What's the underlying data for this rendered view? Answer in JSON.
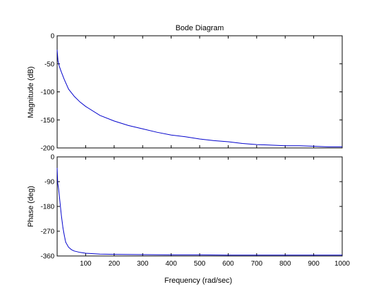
{
  "chart_data": {
    "type": "line",
    "title": "Bode Diagram",
    "xlabel": "Frequency  (rad/sec)",
    "line_color": "#0000cc",
    "grid": false,
    "x_ticks": [
      "100",
      "200",
      "300",
      "400",
      "500",
      "600",
      "700",
      "800",
      "900",
      "1000"
    ],
    "xlim": [
      0,
      1000
    ],
    "panels": [
      {
        "id": "magnitude",
        "ylabel": "Magnitude (dB)",
        "ylim": [
          -200,
          0
        ],
        "y_ticks": [
          "0",
          "-50",
          "-100",
          "-150",
          "-200"
        ],
        "series": [
          {
            "x": [
              0,
              3,
              8,
              15,
              25,
              40,
              60,
              80,
              100,
              150,
              200,
              250,
              300,
              350,
              400,
              450,
              500,
              550,
              600,
              650,
              700,
              750,
              800,
              850,
              900,
              950,
              1000
            ],
            "y": [
              -25,
              -45,
              -55,
              -65,
              -78,
              -95,
              -108,
              -118,
              -126,
              -142,
              -152,
              -160,
              -166,
              -172,
              -177,
              -180,
              -184,
              -187,
              -189,
              -192,
              -194,
              -195,
              -196,
              -196,
              -197,
              -198,
              -198
            ]
          }
        ]
      },
      {
        "id": "phase",
        "ylabel": "Phase (deg)",
        "ylim": [
          -360,
          0
        ],
        "y_ticks": [
          "0",
          "-90",
          "-180",
          "-270",
          "-360"
        ],
        "series": [
          {
            "x": [
              0,
              2,
              5,
              10,
              15,
              20,
              25,
              30,
              40,
              50,
              60,
              80,
              100,
              150,
              200,
              300,
              400,
              500,
              600,
              700,
              800,
              900,
              1000
            ],
            "y": [
              -40,
              -95,
              -115,
              -165,
              -215,
              -255,
              -285,
              -310,
              -328,
              -337,
              -342,
              -347,
              -350,
              -353,
              -354,
              -355,
              -356,
              -356,
              -357,
              -357,
              -357,
              -357,
              -357
            ]
          }
        ]
      }
    ]
  }
}
